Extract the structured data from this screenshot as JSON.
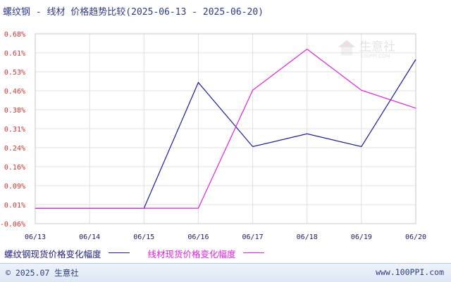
{
  "header": {
    "title": "螺纹钢 - 线材 价格趋势比较(2025-06-13 - 2025-06-20)"
  },
  "chart_data": {
    "type": "line",
    "categories": [
      "06/13",
      "06/14",
      "06/15",
      "06/16",
      "06/17",
      "06/18",
      "06/19",
      "06/20"
    ],
    "y_ticks": [
      "0.68%",
      "0.61%",
      "0.53%",
      "0.46%",
      "0.38%",
      "0.31%",
      "0.24%",
      "0.16%",
      "0.09%",
      "0.01%",
      "-0.06%"
    ],
    "ylim": [
      -0.06,
      0.68
    ],
    "grid": true,
    "legend_position": "bottom",
    "series": [
      {
        "name": "螺纹钢现货价格变化幅度",
        "color": "#1a1a9c",
        "x": [
          0.0,
          1.0,
          2.0,
          3.0,
          4.0,
          5.0,
          6.0,
          7.0
        ],
        "values": [
          0.0,
          0.0,
          0.0,
          0.49,
          0.24,
          0.29,
          0.24,
          0.58
        ]
      },
      {
        "name": "线材现货价格变化幅度",
        "color": "#e020e0",
        "x": [
          0.0,
          1.0,
          2.0,
          3.0,
          4.0,
          5.0,
          6.0,
          7.0
        ],
        "values": [
          0.0,
          0.0,
          0.0,
          0.0,
          0.46,
          0.62,
          0.46,
          0.39
        ]
      }
    ]
  },
  "watermark": {
    "text": "生意社",
    "subtext": "100PPI.COM"
  },
  "footer": {
    "copyright": "© 2025.07 生意社",
    "url": "www.100PPI.com"
  }
}
